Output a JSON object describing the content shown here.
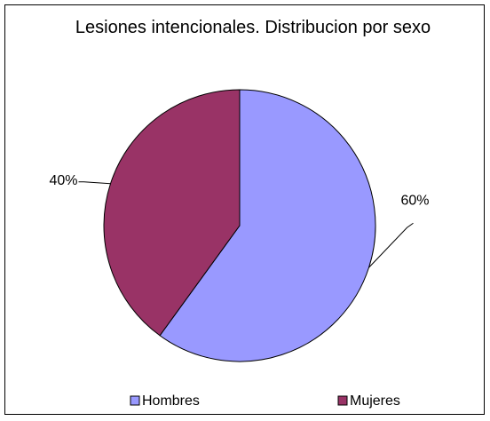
{
  "chart_data": {
    "type": "pie",
    "title": "Lesiones intencionales. Distribucion por sexo",
    "categories": [
      "Hombres",
      "Mujeres"
    ],
    "values": [
      60,
      40
    ],
    "value_labels": [
      "60%",
      "40%"
    ],
    "colors": [
      "#9999ff",
      "#993366"
    ],
    "legend": "bottom"
  }
}
